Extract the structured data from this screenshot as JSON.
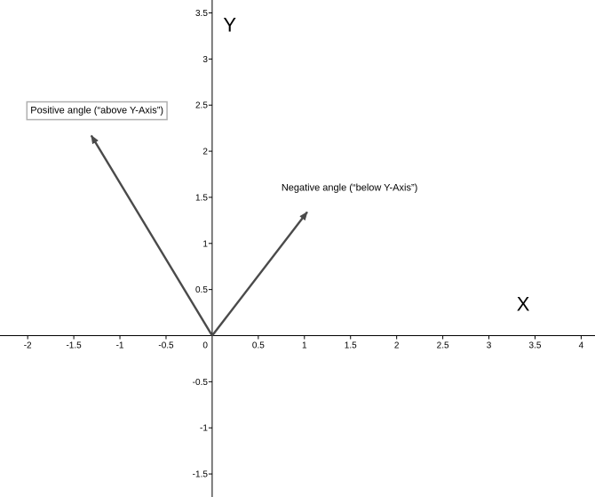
{
  "chart_data": {
    "type": "vector-diagram",
    "x_axis": {
      "name": "X",
      "range": [
        -2.3,
        4.15
      ],
      "ticks": [
        {
          "value": -2,
          "label": "-2"
        },
        {
          "value": -1.5,
          "label": "-1.5"
        },
        {
          "value": -1,
          "label": "-1"
        },
        {
          "value": -0.5,
          "label": "-0.5"
        },
        {
          "value": 0.5,
          "label": "0.5"
        },
        {
          "value": 1,
          "label": "1"
        },
        {
          "value": 1.5,
          "label": "1.5"
        },
        {
          "value": 2,
          "label": "2"
        },
        {
          "value": 2.5,
          "label": "2.5"
        },
        {
          "value": 3,
          "label": "3"
        },
        {
          "value": 3.5,
          "label": "3.5"
        },
        {
          "value": 4,
          "label": "4"
        }
      ]
    },
    "y_axis": {
      "name": "Y",
      "range": [
        -1.75,
        3.64
      ],
      "ticks": [
        {
          "value": 3.5,
          "label": "3.5"
        },
        {
          "value": 3,
          "label": "3"
        },
        {
          "value": 2.5,
          "label": "2.5"
        },
        {
          "value": 2,
          "label": "2"
        },
        {
          "value": 1.5,
          "label": "1.5"
        },
        {
          "value": 1,
          "label": "1"
        },
        {
          "value": 0.5,
          "label": "0.5"
        },
        {
          "value": -0.5,
          "label": "-0.5"
        },
        {
          "value": -1,
          "label": "-1"
        },
        {
          "value": -1.5,
          "label": "-1.5"
        }
      ]
    },
    "origin_label": "0",
    "vectors": [
      {
        "name": "positive",
        "from": [
          0,
          0
        ],
        "to": [
          -1.31,
          2.17
        ],
        "color": "#4a4a4a"
      },
      {
        "name": "negative",
        "from": [
          0,
          0
        ],
        "to": [
          1.03,
          1.34
        ],
        "color": "#4a4a4a"
      }
    ],
    "annotations": [
      {
        "name": "positive-angle-label",
        "text": "Positive angle (“above Y-Axis”)",
        "at": [
          -1.97,
          2.41
        ],
        "boxed": true
      },
      {
        "name": "negative-angle-label",
        "text": "Negative angle (“below Y-Axis”)",
        "at": [
          0.75,
          1.57
        ],
        "boxed": false
      }
    ],
    "axis_name_positions": {
      "x": [
        3.3,
        0.27
      ],
      "y": [
        0.12,
        3.3
      ]
    },
    "grid": false
  }
}
